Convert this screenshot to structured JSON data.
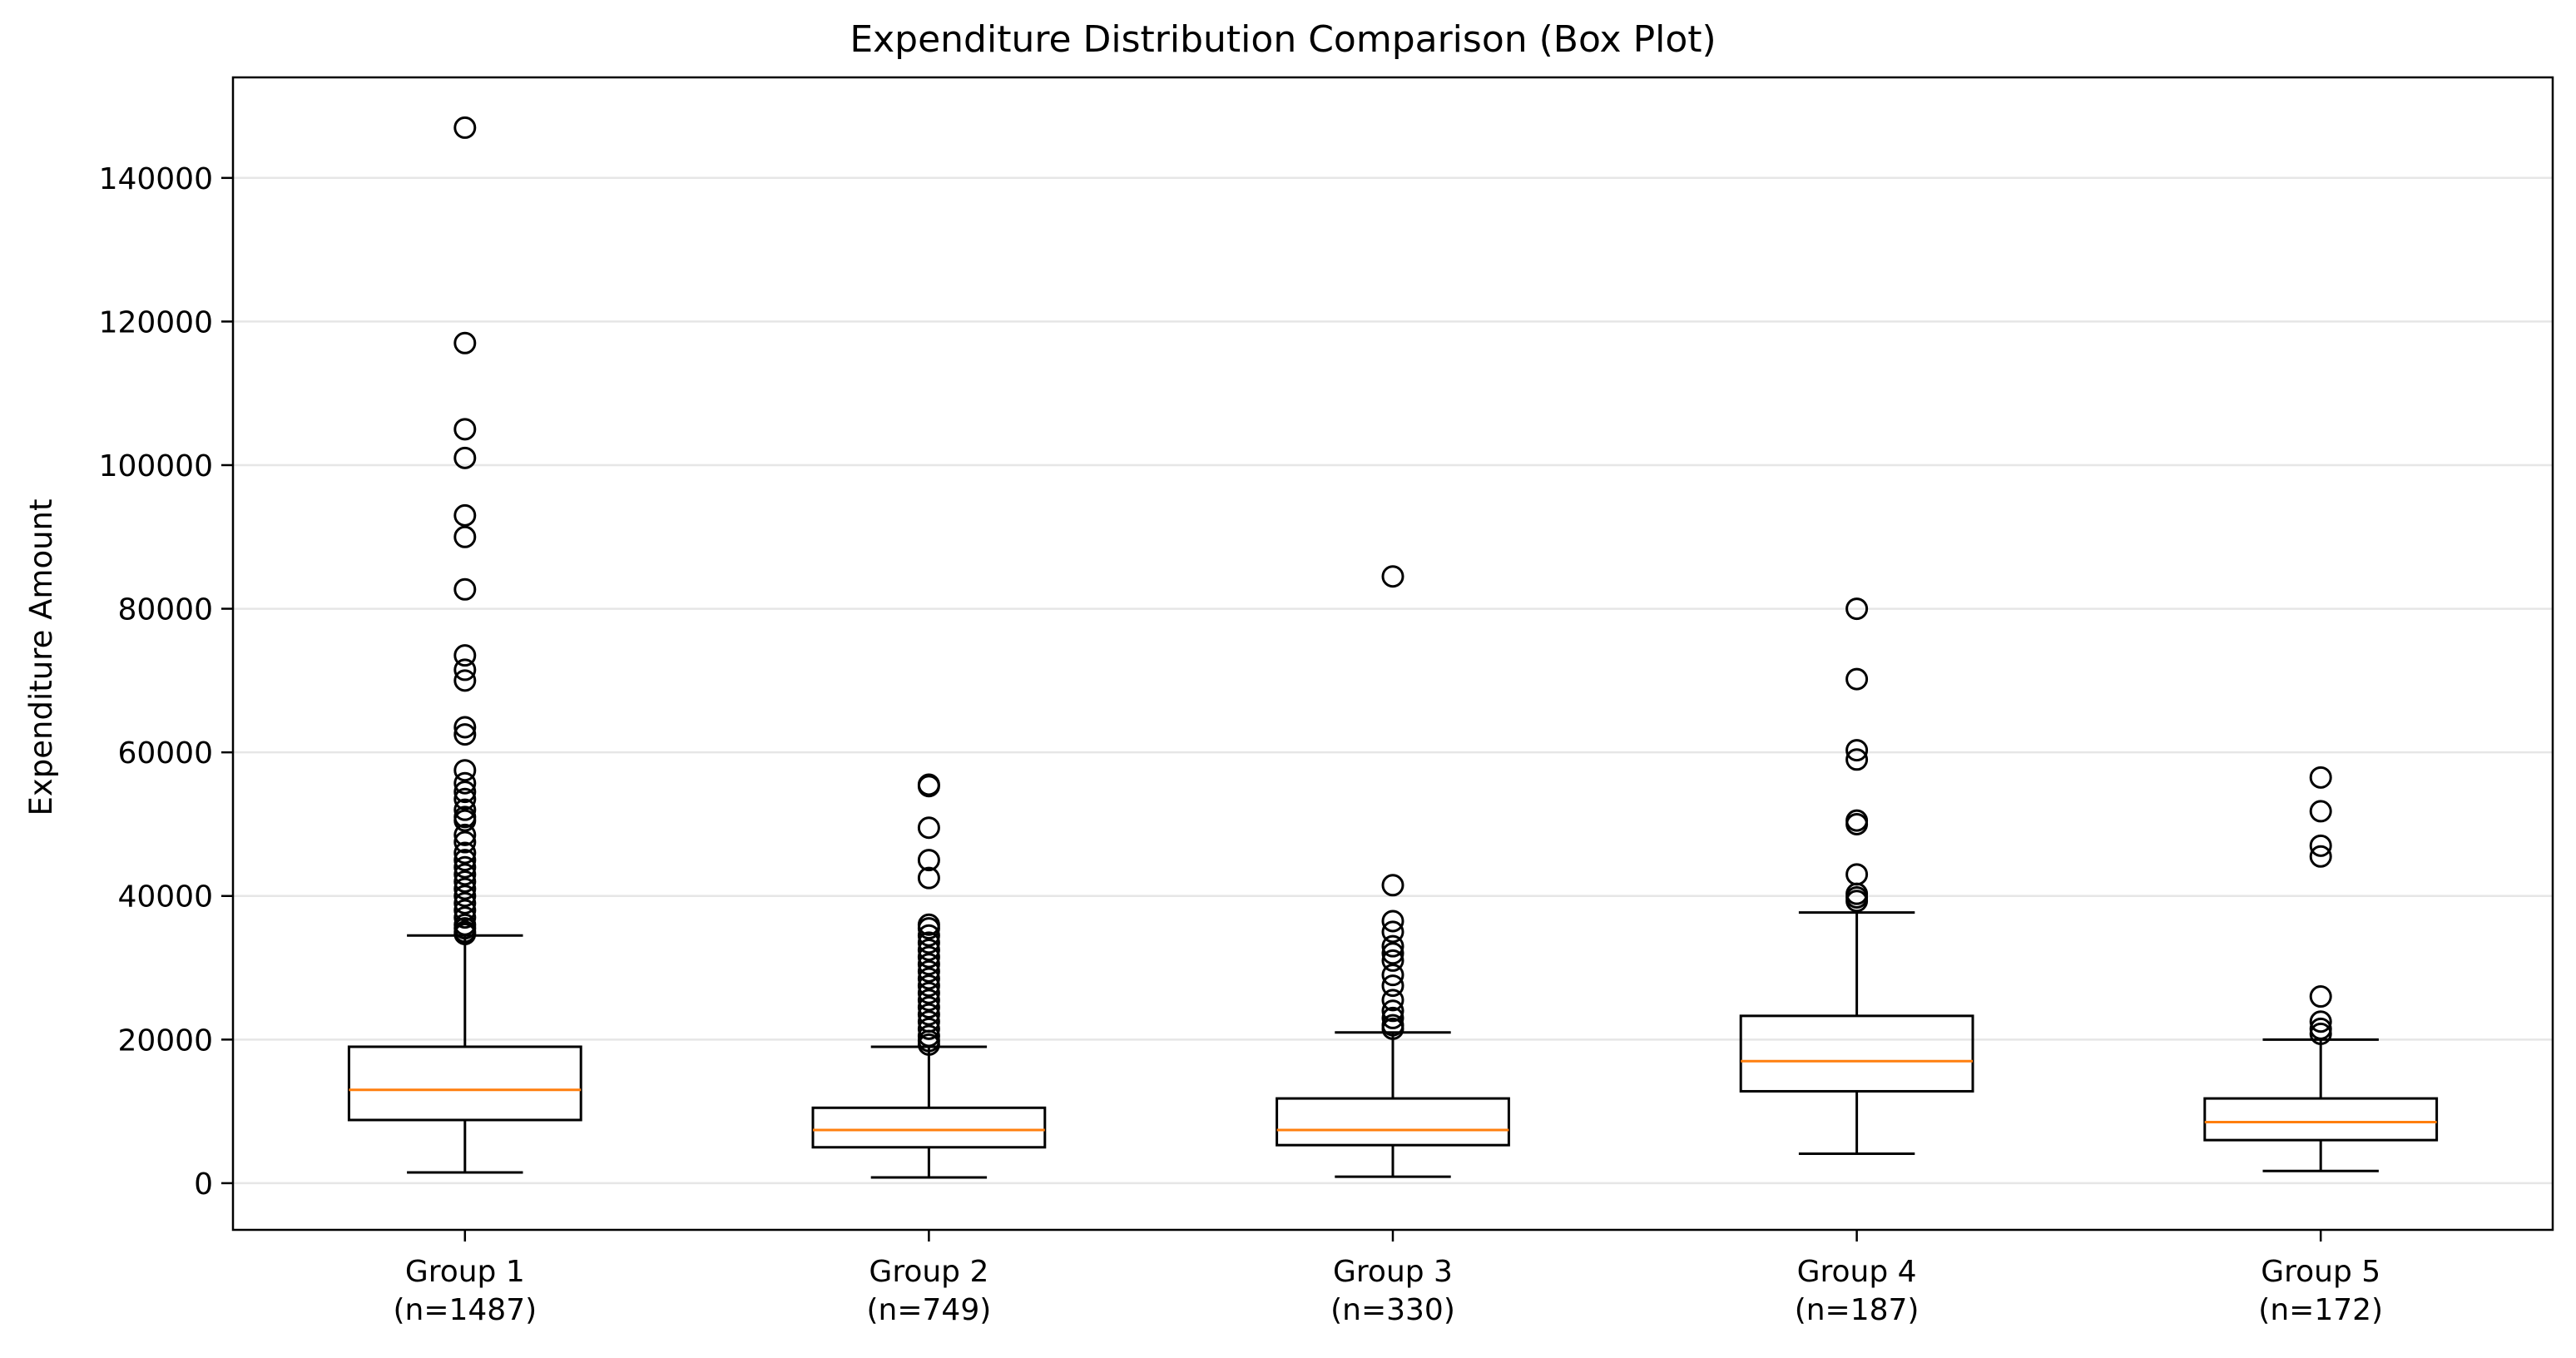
{
  "chart_data": {
    "type": "box",
    "title": "Expenditure Distribution Comparison (Box Plot)",
    "xlabel": "",
    "ylabel": "Expenditure Amount",
    "ylim": [
      -6500,
      154000
    ],
    "yticks": [
      0,
      20000,
      40000,
      60000,
      80000,
      100000,
      120000,
      140000
    ],
    "ytick_labels": [
      "0",
      "20000",
      "40000",
      "60000",
      "80000",
      "100000",
      "120000",
      "140000"
    ],
    "grid": "horizontal",
    "colors": {
      "box": "#000000",
      "median": "#ff7f0e",
      "grid": "#e6e6e6",
      "axis": "#000000"
    },
    "categories": [
      "Group 1",
      "Group 2",
      "Group 3",
      "Group 4",
      "Group 5"
    ],
    "sample_sizes": [
      "(n=1487)",
      "(n=749)",
      "(n=330)",
      "(n=187)",
      "(n=172)"
    ],
    "boxes": [
      {
        "label": "Group 1",
        "n": 1487,
        "whisker_low": 1500,
        "q1": 8800,
        "median": 13000,
        "q3": 19000,
        "whisker_high": 34500,
        "outliers": [
          147000,
          117000,
          105000,
          101000,
          93000,
          90000,
          82700,
          73500,
          71500,
          70000,
          63500,
          62500,
          57500,
          55700,
          54500,
          53500,
          52000,
          51000,
          50500,
          48500,
          47500,
          46000,
          45000,
          44000,
          43000,
          42000,
          41000,
          40000,
          39000,
          38000,
          37000,
          36000,
          35500,
          35000,
          34700
        ]
      },
      {
        "label": "Group 2",
        "n": 749,
        "whisker_low": 800,
        "q1": 5000,
        "median": 7400,
        "q3": 10500,
        "whisker_high": 19000,
        "outliers": [
          55500,
          55300,
          49500,
          45000,
          42500,
          36000,
          35500,
          34500,
          33500,
          32500,
          31500,
          30500,
          29500,
          28500,
          27500,
          26500,
          25500,
          24500,
          23500,
          22500,
          21500,
          20500,
          19800,
          19300
        ]
      },
      {
        "label": "Group 3",
        "n": 330,
        "whisker_low": 900,
        "q1": 5300,
        "median": 7400,
        "q3": 11800,
        "whisker_high": 21000,
        "outliers": [
          84500,
          41500,
          36500,
          35000,
          33000,
          32000,
          31000,
          29000,
          27500,
          25500,
          24000,
          23000,
          22000,
          21500
        ]
      },
      {
        "label": "Group 4",
        "n": 187,
        "whisker_low": 4100,
        "q1": 12800,
        "median": 17000,
        "q3": 23300,
        "whisker_high": 37700,
        "outliers": [
          80000,
          70200,
          60300,
          59000,
          50500,
          50000,
          43000,
          40300,
          39800,
          39300
        ]
      },
      {
        "label": "Group 5",
        "n": 172,
        "whisker_low": 1700,
        "q1": 6000,
        "median": 8500,
        "q3": 11800,
        "whisker_high": 20000,
        "outliers": [
          56500,
          51800,
          47000,
          45500,
          26000,
          22500,
          21500,
          20800
        ]
      }
    ]
  }
}
